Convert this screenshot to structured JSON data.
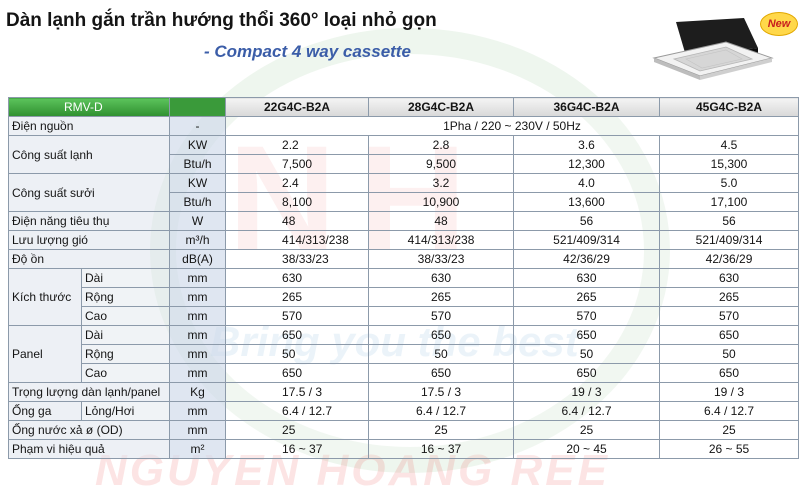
{
  "title_vn": "Dàn lạnh gắn trần hướng thổi 360° loại nhỏ gọn",
  "title_en": "- Compact 4 way cassette",
  "badge": "New",
  "watermark": {
    "letters": "NH",
    "tagline": "Bring you the best",
    "brand": "NGUYEN HOANG REE"
  },
  "header": {
    "label": "RMV-D",
    "unit": "",
    "models": [
      "22G4C-B2A",
      "28G4C-B2A",
      "36G4C-B2A",
      "45G4C-B2A"
    ]
  },
  "rows": [
    {
      "label": "Điện nguồn",
      "unit": "-",
      "span": "1Pha / 220 ~ 230V / 50Hz"
    },
    {
      "label": "Công suất lạnh",
      "sub": [
        {
          "unit": "KW",
          "values": [
            "2.2",
            "2.8",
            "3.6",
            "4.5"
          ]
        },
        {
          "unit": "Btu/h",
          "values": [
            "7,500",
            "9,500",
            "12,300",
            "15,300"
          ]
        }
      ]
    },
    {
      "label": "Công suất sưởi",
      "sub": [
        {
          "unit": "KW",
          "values": [
            "2.4",
            "3.2",
            "4.0",
            "5.0"
          ]
        },
        {
          "unit": "Btu/h",
          "values": [
            "8,100",
            "10,900",
            "13,600",
            "17,100"
          ]
        }
      ]
    },
    {
      "label": "Điện năng tiêu thụ",
      "unit": "W",
      "values": [
        "48",
        "48",
        "56",
        "56"
      ]
    },
    {
      "label": "Lưu lượng gió",
      "unit": "m³/h",
      "values": [
        "414/313/238",
        "414/313/238",
        "521/409/314",
        "521/409/314"
      ]
    },
    {
      "label": "Độ ồn",
      "unit": "dB(A)",
      "values": [
        "38/33/23",
        "38/33/23",
        "42/36/29",
        "42/36/29"
      ]
    },
    {
      "label": "Kích thước",
      "sub": [
        {
          "name": "Dài",
          "unit": "mm",
          "values": [
            "630",
            "630",
            "630",
            "630"
          ]
        },
        {
          "name": "Rộng",
          "unit": "mm",
          "values": [
            "265",
            "265",
            "265",
            "265"
          ]
        },
        {
          "name": "Cao",
          "unit": "mm",
          "values": [
            "570",
            "570",
            "570",
            "570"
          ]
        }
      ]
    },
    {
      "label": "Panel",
      "sub": [
        {
          "name": "Dài",
          "unit": "mm",
          "values": [
            "650",
            "650",
            "650",
            "650"
          ]
        },
        {
          "name": "Rộng",
          "unit": "mm",
          "values": [
            "50",
            "50",
            "50",
            "50"
          ]
        },
        {
          "name": "Cao",
          "unit": "mm",
          "values": [
            "650",
            "650",
            "650",
            "650"
          ]
        }
      ]
    },
    {
      "label": "Trọng lượng dàn lạnh/panel",
      "unit": "Kg",
      "values": [
        "17.5 / 3",
        "17.5 / 3",
        "19 / 3",
        "19 / 3"
      ]
    },
    {
      "label": "Ống ga",
      "name": "Lỏng/Hơi",
      "unit": "mm",
      "values": [
        "6.4 / 12.7",
        "6.4 / 12.7",
        "6.4 / 12.7",
        "6.4 / 12.7"
      ]
    },
    {
      "label": "Ống nước xả ø (OD)",
      "unit": "mm",
      "values": [
        "25",
        "25",
        "25",
        "25"
      ]
    },
    {
      "label": "Phạm vi hiệu quả",
      "unit": "m²",
      "values": [
        "16 ~ 37",
        "16 ~ 37",
        "20 ~ 45",
        "26 ~ 55"
      ]
    }
  ],
  "colors": {
    "header_green": "#3a9a3a",
    "title_blue": "#3b5da8",
    "label_bg": "#dee4ec",
    "unit_bg": "#d2dceb",
    "grid": "#8c9aaa"
  }
}
